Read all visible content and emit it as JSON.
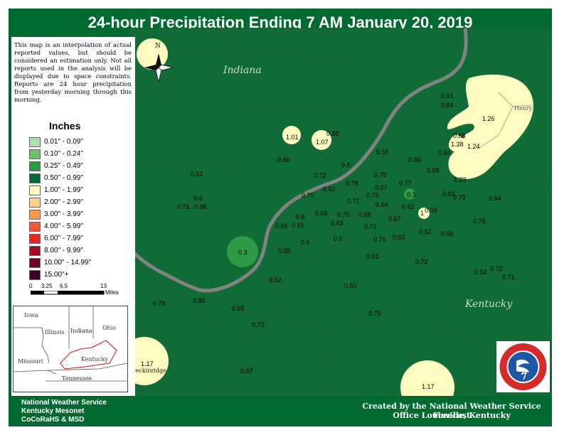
{
  "title": "24-hour Precipitation Ending 7 AM  January 20, 2019",
  "disclaimer": "This map is an interpolation of actual reported values, but should be considered an estimation only. Not all reports used in the analysis will be displayed due to space constraints. Reports are 24 hour precipitation from yesterday morning through this morning.",
  "legend": {
    "title": "Inches",
    "items": [
      {
        "label": "0.01\" - 0.09\"",
        "color": "#b3dfb0"
      },
      {
        "label": "0.10\" - 0.24\"",
        "color": "#6ec06b"
      },
      {
        "label": "0.25\" - 0.49\"",
        "color": "#2f9a46"
      },
      {
        "label": "0.50\" - 0.99\"",
        "color": "#006a30"
      },
      {
        "label": "1.00\" - 1.99\"",
        "color": "#fffcc2"
      },
      {
        "label": "2.00\" - 2.99\"",
        "color": "#fdd18e"
      },
      {
        "label": "3.00\" - 3.99\"",
        "color": "#fc9a52"
      },
      {
        "label": "4.00\" - 5.99\"",
        "color": "#f2583a"
      },
      {
        "label": "6.00\" - 7.99\"",
        "color": "#e3281f"
      },
      {
        "label": "8.00\" - 9.99\"",
        "color": "#a5071f"
      },
      {
        "label": "10.00\" - 14.99\"",
        "color": "#6e0226"
      },
      {
        "label": "15.00\"+",
        "color": "#3c0128"
      }
    ]
  },
  "scale": {
    "ticks": [
      "0",
      "3.25",
      "6.5",
      "13"
    ],
    "unit": "Miles"
  },
  "compass_label": "N",
  "state_labels": {
    "indiana": "Indiana",
    "kentucky": "Kentucky"
  },
  "county_labels": {
    "breckinridge": "Breckinridge",
    "henry": "Henry"
  },
  "locator": {
    "states": [
      "Iowa",
      "Illinois",
      "Indiana",
      "Ohio",
      "Missouri",
      "Kentucky",
      "Tennessee"
    ]
  },
  "values": [
    {
      "id": "v01",
      "text": "0.91"
    },
    {
      "id": "v02",
      "text": "0.84"
    },
    {
      "id": "v03",
      "text": "1.26"
    },
    {
      "id": "v04",
      "text": "1.01"
    },
    {
      "id": "v05",
      "text": "0.88"
    },
    {
      "id": "v06",
      "text": "1.07"
    },
    {
      "id": "v07",
      "text": "0.68"
    },
    {
      "id": "v08",
      "text": "1.38"
    },
    {
      "id": "v09",
      "text": "1.24"
    },
    {
      "id": "v10",
      "text": "0.69"
    },
    {
      "id": "v11",
      "text": "0.66"
    },
    {
      "id": "v12",
      "text": "0.86"
    },
    {
      "id": "v13",
      "text": "0.8"
    },
    {
      "id": "v14",
      "text": "0.89"
    },
    {
      "id": "v15",
      "text": "0.98"
    },
    {
      "id": "v16",
      "text": "0.72"
    },
    {
      "id": "v17",
      "text": "0.79"
    },
    {
      "id": "v18",
      "text": "0.52"
    },
    {
      "id": "v19",
      "text": "0.78"
    },
    {
      "id": "v20",
      "text": "0.77"
    },
    {
      "id": "v21",
      "text": "1.23"
    },
    {
      "id": "v22",
      "text": "0.83"
    },
    {
      "id": "v23",
      "text": "0.67"
    },
    {
      "id": "v24",
      "text": "0.75"
    },
    {
      "id": "v25",
      "text": "0.73"
    },
    {
      "id": "v26",
      "text": "0.3"
    },
    {
      "id": "v27",
      "text": "0.83"
    },
    {
      "id": "v28",
      "text": "0.79"
    },
    {
      "id": "v29",
      "text": "0.64"
    },
    {
      "id": "v30",
      "text": "0.6"
    },
    {
      "id": "v31",
      "text": "0.76"
    },
    {
      "id": "v32",
      "text": "0.98"
    },
    {
      "id": "v33",
      "text": "0.71"
    },
    {
      "id": "v34",
      "text": "0.64"
    },
    {
      "id": "v35",
      "text": "0.62"
    },
    {
      "id": "v36",
      "text": "0.69"
    },
    {
      "id": "v37",
      "text": "1"
    },
    {
      "id": "v38",
      "text": "0.6"
    },
    {
      "id": "v39",
      "text": "0.66"
    },
    {
      "id": "v40",
      "text": "0.75"
    },
    {
      "id": "v41",
      "text": "0.68"
    },
    {
      "id": "v42",
      "text": "0.67"
    },
    {
      "id": "v43",
      "text": "0.63"
    },
    {
      "id": "v44",
      "text": "0.76"
    },
    {
      "id": "v45",
      "text": "0.66"
    },
    {
      "id": "v46",
      "text": "0.91"
    },
    {
      "id": "v47",
      "text": "0.71"
    },
    {
      "id": "v48",
      "text": "0.62"
    },
    {
      "id": "v49",
      "text": "0.66"
    },
    {
      "id": "v50",
      "text": "0.6"
    },
    {
      "id": "v51",
      "text": "0.6"
    },
    {
      "id": "v52",
      "text": "0.79"
    },
    {
      "id": "v53",
      "text": "0.65"
    },
    {
      "id": "v54",
      "text": "0.3"
    },
    {
      "id": "v55",
      "text": "0.65"
    },
    {
      "id": "v56",
      "text": "0.61"
    },
    {
      "id": "v57",
      "text": "0.72"
    },
    {
      "id": "v58",
      "text": "0.52"
    },
    {
      "id": "v59",
      "text": "0.72"
    },
    {
      "id": "v60",
      "text": "0.71"
    },
    {
      "id": "v61",
      "text": "0.62"
    },
    {
      "id": "v62",
      "text": "0.65"
    },
    {
      "id": "v63",
      "text": "0.79"
    },
    {
      "id": "v64",
      "text": "0.85"
    },
    {
      "id": "v65",
      "text": "0.68"
    },
    {
      "id": "v66",
      "text": "0.79"
    },
    {
      "id": "v67",
      "text": "0.72"
    },
    {
      "id": "v68",
      "text": "1.17"
    },
    {
      "id": "v69",
      "text": "0.67"
    },
    {
      "id": "v70",
      "text": "1.17"
    }
  ],
  "credits_left": [
    "National Weather Service",
    "Kentucky Mesonet",
    "CoCoRaHS & MSD"
  ],
  "credits_right": [
    "Created by the National Weather Service Forecast",
    "Office Louisville, Kentucky"
  ]
}
